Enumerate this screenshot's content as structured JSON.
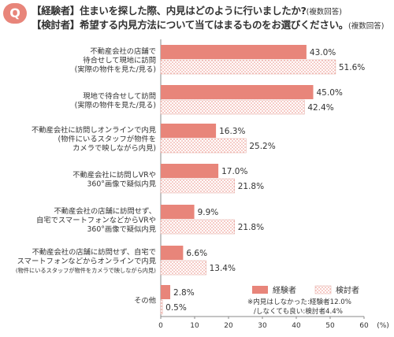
{
  "question": {
    "badge": "Q",
    "line1": "【経験者】住まいを探した際、内見はどのように行いましたか?",
    "line1_note": "(複数回答)",
    "line2": "【検討者】希望する内見方法について当てはまるものをお選びください。",
    "line2_note": "(複数回答)"
  },
  "colors": {
    "accent": "#e8857a",
    "experienced_fill": "#e8857a",
    "considering_dots": "#e8857a"
  },
  "chart_data": {
    "type": "bar",
    "orientation": "horizontal",
    "categories": [
      [
        "不動産会社の店舗で",
        "待合せして現地に訪問",
        "(実際の物件を見た/見る)"
      ],
      [
        "現地で待合せして訪問",
        "(実際の物件を見た/見る)"
      ],
      [
        "不動産会社に訪問しオンラインで内見",
        "(物件にいるスタッフが物件を",
        "カメラで映しながら内見)"
      ],
      [
        "不動産会社に訪問しVRや",
        "360°画像で疑似内見"
      ],
      [
        "不動産会社の店舗に訪問せず、",
        "自宅でスマートフォンなどからVRや",
        "360°画像で疑似内見"
      ],
      [
        "不動産会社の店舗に訪問せず、自宅で",
        "スマートフォンなどからオンラインで内見",
        "(物件にいるスタッフが物件をカメラで映しながら内見)"
      ],
      [
        "その他"
      ]
    ],
    "series": [
      {
        "name": "経験者",
        "values": [
          43.0,
          45.0,
          16.3,
          17.0,
          9.9,
          6.6,
          2.8
        ],
        "labels": [
          "43.0%",
          "45.0%",
          "16.3%",
          "17.0%",
          "9.9%",
          "6.6%",
          "2.8%"
        ]
      },
      {
        "name": "検討者",
        "values": [
          51.6,
          42.4,
          25.2,
          21.8,
          21.8,
          13.4,
          0.5
        ],
        "labels": [
          "51.6%",
          "42.4%",
          "25.2%",
          "21.8%",
          "21.8%",
          "13.4%",
          "0.5%"
        ]
      }
    ],
    "xlim": [
      0,
      60
    ],
    "xticks": [
      "0",
      "10",
      "20",
      "30",
      "40",
      "50",
      "60"
    ],
    "xunit": "(%)",
    "legend_position": "bottom-right",
    "footnote": [
      "※内見はしなかった:経験者12.0%",
      "/しなくても良い:検討者4.4%"
    ],
    "grid": false
  }
}
